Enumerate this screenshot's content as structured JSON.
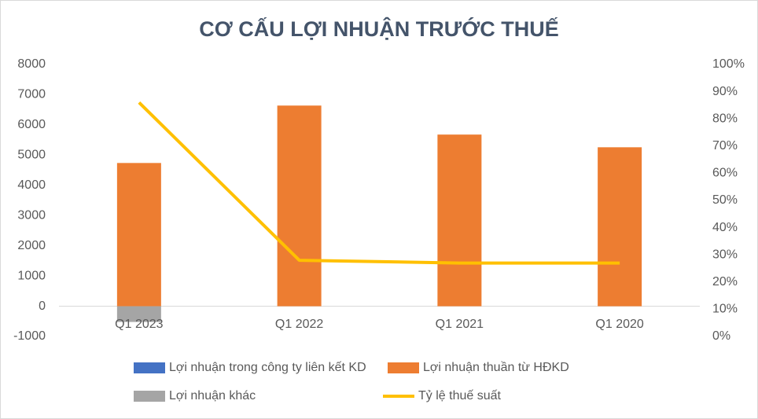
{
  "chart_data": {
    "type": "bar",
    "title": "CƠ CẤU LỢI NHUẬN TRƯỚC THUẾ",
    "categories": [
      "Q1 2023",
      "Q1 2022",
      "Q1 2021",
      "Q1 2020"
    ],
    "series": [
      {
        "name": "Lợi nhuận trong công ty liên kết KD",
        "type": "bar",
        "color": "#4472c4",
        "values": [
          0,
          0,
          0,
          0
        ]
      },
      {
        "name": "Lợi nhuận thuần từ HĐKD",
        "type": "bar",
        "color": "#ed7d31",
        "values": [
          4740,
          6640,
          5680,
          5260
        ]
      },
      {
        "name": "Lợi nhuận khác",
        "type": "bar",
        "color": "#a5a5a5",
        "values": [
          -520,
          0,
          0,
          0
        ]
      },
      {
        "name": "Tỷ lệ thuế suất",
        "type": "line",
        "axis": "y2",
        "color": "#ffc000",
        "values": [
          86,
          28,
          27,
          27
        ]
      }
    ],
    "ylim": [
      -1000,
      8000
    ],
    "yticks": [
      -1000,
      0,
      1000,
      2000,
      3000,
      4000,
      5000,
      6000,
      7000,
      8000
    ],
    "y2lim": [
      0,
      100
    ],
    "y2ticks": [
      {
        "value": 0,
        "label": "0%"
      },
      {
        "value": 10,
        "label": "10%"
      },
      {
        "value": 20,
        "label": "20%"
      },
      {
        "value": 30,
        "label": "30%"
      },
      {
        "value": 40,
        "label": "40%"
      },
      {
        "value": 50,
        "label": "50%"
      },
      {
        "value": 60,
        "label": "60%"
      },
      {
        "value": 70,
        "label": "70%"
      },
      {
        "value": 80,
        "label": "80%"
      },
      {
        "value": 90,
        "label": "90%"
      },
      {
        "value": 100,
        "label": "100%"
      }
    ],
    "grid": false
  }
}
